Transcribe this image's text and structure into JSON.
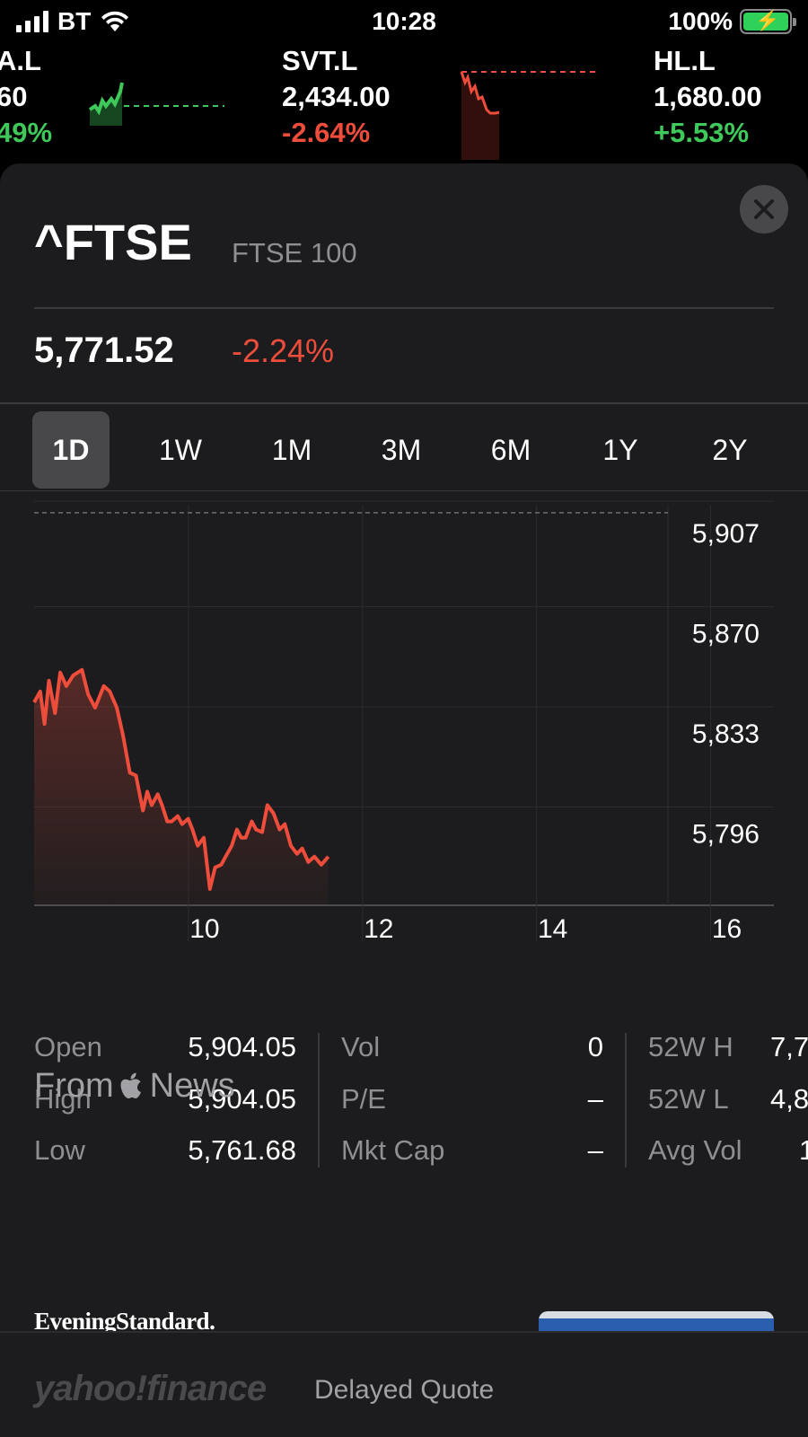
{
  "status_bar": {
    "carrier": "BT",
    "time": "10:28",
    "battery": "100%"
  },
  "ticker": [
    {
      "symbol": "A.L",
      "price": "60",
      "change": "49%",
      "direction": "up"
    },
    {
      "symbol": "SVT.L",
      "price": "2,434.00",
      "change": "-2.64%",
      "direction": "down"
    },
    {
      "symbol": "HL.L",
      "price": "1,680.00",
      "change": "+5.53%",
      "direction": "up"
    }
  ],
  "quote": {
    "symbol": "^FTSE",
    "name": "FTSE 100",
    "price": "5,771.52",
    "change": "-2.24%"
  },
  "ranges": [
    "1D",
    "1W",
    "1M",
    "3M",
    "6M",
    "1Y",
    "2Y"
  ],
  "selected_range": "1D",
  "chart_data": {
    "type": "line",
    "title": "",
    "xlabel": "",
    "ylabel": "",
    "x_ticks": [
      "10",
      "12",
      "14",
      "16"
    ],
    "y_ticks": [
      "5,907",
      "5,870",
      "5,833",
      "5,796"
    ],
    "ylim": [
      5759,
      5907
    ],
    "previous_close": 5904.05,
    "x_range_hours": [
      8.0,
      16.5
    ],
    "series": [
      {
        "color": "#ee4d3c",
        "x": [
          8.0,
          8.07,
          8.12,
          8.17,
          8.24,
          8.3,
          8.37,
          8.45,
          8.55,
          8.62,
          8.7,
          8.8,
          8.87,
          8.95,
          9.02,
          9.1,
          9.17,
          9.25,
          9.3,
          9.35,
          9.42,
          9.47,
          9.53,
          9.58,
          9.65,
          9.7,
          9.77,
          9.82,
          9.88,
          9.95,
          10.02,
          10.08,
          10.15,
          10.2,
          10.27,
          10.33,
          10.38,
          10.43,
          10.5,
          10.55,
          10.62,
          10.68,
          10.75,
          10.82,
          10.88,
          10.95,
          11.02,
          11.08,
          11.15,
          11.22,
          11.3,
          11.38
        ],
        "values": [
          5834,
          5838,
          5826,
          5842,
          5830,
          5845,
          5840,
          5844,
          5846,
          5837,
          5832,
          5840,
          5838,
          5832,
          5822,
          5808,
          5807,
          5794,
          5801,
          5796,
          5800,
          5796,
          5790,
          5790,
          5792,
          5789,
          5791,
          5787,
          5781,
          5784,
          5765,
          5773,
          5774,
          5777,
          5781,
          5787,
          5784,
          5784,
          5790,
          5787,
          5786,
          5796,
          5793,
          5787,
          5789,
          5781,
          5778,
          5780,
          5775,
          5777,
          5774,
          5777
        ]
      }
    ],
    "grid": true
  },
  "stats": [
    {
      "label": "Open",
      "value": "5,904.05"
    },
    {
      "label": "High",
      "value": "5,904.05"
    },
    {
      "label": "Low",
      "value": "5,761.68"
    },
    {
      "label": "Vol",
      "value": "0"
    },
    {
      "label": "P/E",
      "value": "–"
    },
    {
      "label": "Mkt Cap",
      "value": "–"
    },
    {
      "label": "52W H",
      "value": "7,7"
    },
    {
      "label": "52W L",
      "value": "4,8"
    },
    {
      "label": "Avg Vol",
      "value": "1"
    }
  ],
  "news": {
    "heading_prefix": "From",
    "heading_suffix": "News",
    "publisher": "EveningStandard."
  },
  "footer": {
    "brand": "yahoo!finance",
    "note": "Delayed Quote"
  }
}
